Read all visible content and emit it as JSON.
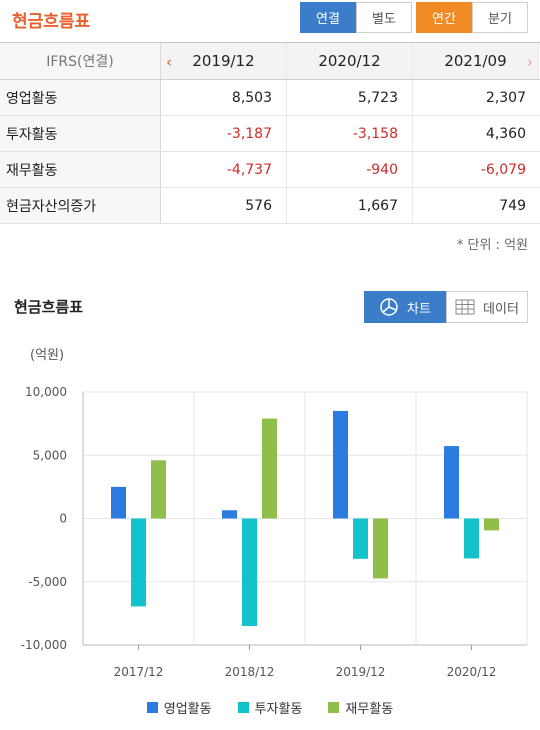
{
  "header": {
    "title": "현금흐름표",
    "toggle_consolidated": "연결",
    "toggle_separate": "별도",
    "toggle_annual": "연간",
    "toggle_quarterly": "분기"
  },
  "table": {
    "label_header": "IFRS(연결)",
    "columns": [
      "2019/12",
      "2020/12",
      "2021/09"
    ],
    "rows": [
      {
        "label": "영업활동",
        "values": [
          "8,503",
          "5,723",
          "2,307"
        ]
      },
      {
        "label": "투자활동",
        "values": [
          "-3,187",
          "-3,158",
          "4,360"
        ]
      },
      {
        "label": "재무활동",
        "values": [
          "-4,737",
          "-940",
          "-6,079"
        ]
      },
      {
        "label": "현금자산의증가",
        "values": [
          "576",
          "1,667",
          "749"
        ]
      }
    ],
    "unit_note": "* 단위 : 억원"
  },
  "chart_section": {
    "title": "현금흐름표",
    "chart_button": "차트",
    "data_button": "데이터",
    "y_unit": "(억원)"
  },
  "colors": {
    "accent_orange": "#e8602c",
    "button_blue": "#3b7dc8",
    "negative_red": "#d12a2a",
    "series_operating": "#2b7be0",
    "series_investing": "#14c2cc",
    "series_financing": "#8fbf4a"
  },
  "icons": {
    "prev": "chevron-left-icon",
    "next": "chevron-right-icon",
    "chart": "pie-chart-icon",
    "data": "table-grid-icon"
  },
  "chart_data": {
    "type": "bar",
    "categories": [
      "2017/12",
      "2018/12",
      "2019/12",
      "2020/12"
    ],
    "series": [
      {
        "name": "영업활동",
        "values": [
          2500,
          650,
          8503,
          5723
        ]
      },
      {
        "name": "투자활동",
        "values": [
          -6950,
          -8500,
          -3187,
          -3158
        ]
      },
      {
        "name": "재무활동",
        "values": [
          4600,
          7900,
          -4737,
          -940
        ]
      }
    ],
    "ylim": [
      -10000,
      10000
    ],
    "yticks": [
      "10,000",
      "5,000",
      "0",
      "-5,000",
      "-10,000"
    ],
    "grid": true,
    "legend": "bottom"
  }
}
